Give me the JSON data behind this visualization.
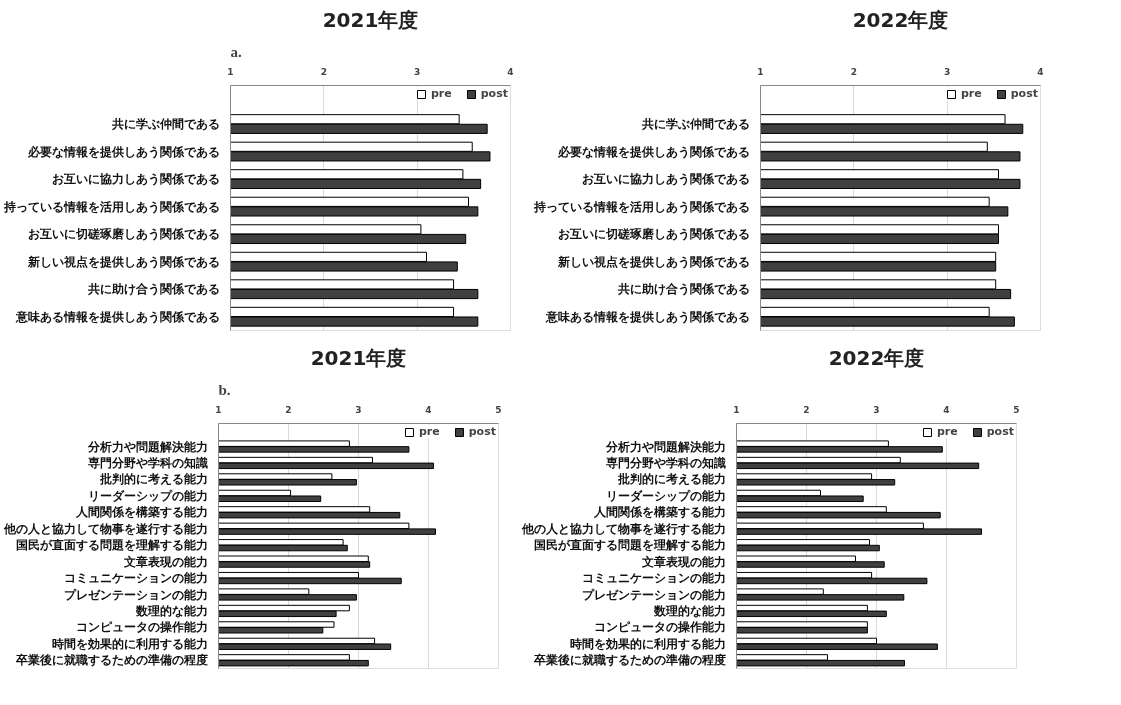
{
  "chart_data": [
    {
      "type": "bar",
      "orientation": "horizontal",
      "title": "2021年度",
      "annotations": [
        "a."
      ],
      "categories": [
        "共に学ぶ仲間である",
        "必要な情報を提供しあう関係である",
        "お互いに協力しあう関係である",
        "持っている情報を活用しあう関係である",
        "お互いに切磋琢磨しあう関係である",
        "新しい視点を提供しあう関係である",
        "共に助け合う関係である",
        "意味ある情報を提供しあう関係である"
      ],
      "series": [
        {
          "name": "pre",
          "color": "#ffffff",
          "values": [
            3.45,
            3.59,
            3.49,
            3.55,
            3.04,
            3.1,
            3.39,
            3.39
          ]
        },
        {
          "name": "post",
          "color": "#404040",
          "values": [
            3.75,
            3.78,
            3.68,
            3.65,
            3.52,
            3.43,
            3.65,
            3.65
          ]
        }
      ],
      "xlim": [
        1,
        4
      ],
      "xticks": [
        1,
        2,
        3,
        4
      ],
      "grid": "x",
      "legend": "top right"
    },
    {
      "type": "bar",
      "orientation": "horizontal",
      "title": "2022年度",
      "categories": [
        "共に学ぶ仲間である",
        "必要な情報を提供しあう関係である",
        "お互いに協力しあう関係である",
        "持っている情報を活用しあう関係である",
        "お互いに切磋琢磨しあう関係である",
        "新しい視点を提供しあう関係である",
        "共に助け合う関係である",
        "意味ある情報を提供しあう関係である"
      ],
      "series": [
        {
          "name": "pre",
          "color": "#ffffff",
          "values": [
            3.62,
            3.43,
            3.55,
            3.45,
            3.55,
            3.52,
            3.52,
            3.45
          ]
        },
        {
          "name": "post",
          "color": "#404040",
          "values": [
            3.81,
            3.78,
            3.78,
            3.65,
            3.55,
            3.52,
            3.68,
            3.72
          ]
        }
      ],
      "xlim": [
        1,
        4
      ],
      "xticks": [
        1,
        2,
        3,
        4
      ],
      "grid": "x",
      "legend": "top right"
    },
    {
      "type": "bar",
      "orientation": "horizontal",
      "title": "2021年度",
      "annotations": [
        "b."
      ],
      "categories": [
        "分析力や問題解決能力",
        "専門分野や学科の知識",
        "批判的に考える能力",
        "リーダーシップの能力",
        "人間関係を構築する能力",
        "他の人と協力して物事を遂行する能力",
        "国民が直面する問題を理解する能力",
        "文章表現の能力",
        "コミュニケーションの能力",
        "プレゼンテーションの能力",
        "数理的な能力",
        "コンピュータの操作能力",
        "時間を効果的に利用する能力",
        "卒業後に就職するための準備の程度"
      ],
      "series": [
        {
          "name": "pre",
          "color": "#ffffff",
          "values": [
            2.87,
            3.2,
            2.62,
            2.03,
            3.16,
            3.72,
            2.78,
            3.14,
            3.0,
            2.29,
            2.87,
            2.65,
            3.23,
            2.87
          ]
        },
        {
          "name": "post",
          "color": "#404040",
          "values": [
            3.72,
            4.07,
            2.97,
            2.46,
            3.59,
            4.1,
            2.84,
            3.16,
            3.61,
            2.97,
            2.68,
            2.49,
            3.46,
            3.14
          ]
        }
      ],
      "xlim": [
        1,
        5
      ],
      "xticks": [
        1,
        2,
        3,
        4,
        5
      ],
      "grid": "x",
      "legend": "top right"
    },
    {
      "type": "bar",
      "orientation": "horizontal",
      "title": "2022年度",
      "categories": [
        "分析力や問題解決能力",
        "専門分野や学科の知識",
        "批判的に考える能力",
        "リーダーシップの能力",
        "人間関係を構築する能力",
        "他の人と協力して物事を遂行する能力",
        "国民が直面する問題を理解する能力",
        "文章表現の能力",
        "コミュニケーションの能力",
        "プレゼンテーションの能力",
        "数理的な能力",
        "コンピュータの操作能力",
        "時間を効果的に利用する能力",
        "卒業後に就職するための準備の程度"
      ],
      "series": [
        {
          "name": "pre",
          "color": "#ffffff",
          "values": [
            3.17,
            3.34,
            2.93,
            2.2,
            3.14,
            3.67,
            2.9,
            2.7,
            2.93,
            2.24,
            2.87,
            2.87,
            3.0,
            2.3
          ]
        },
        {
          "name": "post",
          "color": "#404040",
          "values": [
            3.94,
            4.46,
            3.26,
            2.81,
            3.91,
            4.5,
            3.04,
            3.11,
            3.72,
            3.39,
            3.14,
            2.87,
            3.87,
            3.4
          ]
        }
      ],
      "xlim": [
        1,
        5
      ],
      "xticks": [
        1,
        2,
        3,
        4,
        5
      ],
      "grid": "x",
      "legend": "top right"
    }
  ]
}
